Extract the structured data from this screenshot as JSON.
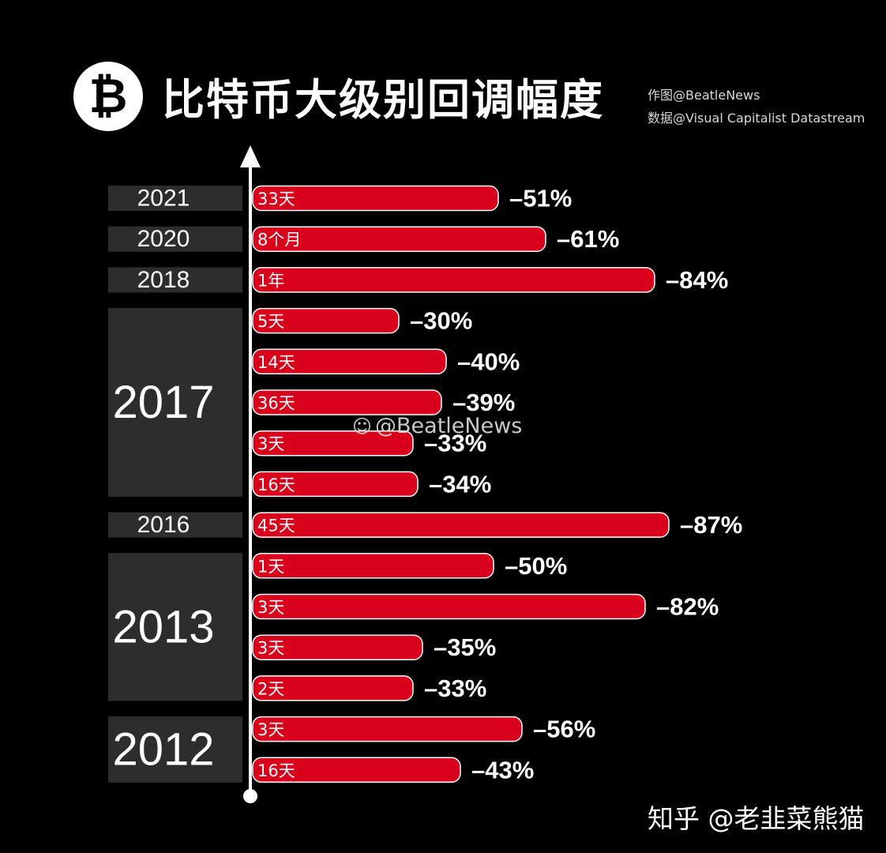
{
  "header": {
    "logo_glyph": "₿",
    "title": "比特币大级别回调幅度",
    "credit_author": "作图@BeatleNews",
    "credit_source": "数据@Visual Capitalist Datastream"
  },
  "watermark": {
    "icon": "weibo-icon",
    "text": "@BeatleNews"
  },
  "footer": {
    "credit": "知乎 @老韭菜熊猫"
  },
  "colors": {
    "bar": "#d9001b",
    "year_band": "#2d2d2d",
    "axis": "#ffffff",
    "background": "#000000"
  },
  "chart_data": {
    "type": "bar",
    "orientation": "horizontal",
    "title": "比特币大级别回调幅度",
    "groups": [
      {
        "year": "2021",
        "bars": [
          {
            "duration": "33天",
            "value": -51,
            "label": "–51%"
          }
        ]
      },
      {
        "year": "2020",
        "bars": [
          {
            "duration": "8个月",
            "value": -61,
            "label": "–61%"
          }
        ]
      },
      {
        "year": "2018",
        "bars": [
          {
            "duration": "1年",
            "value": -84,
            "label": "–84%"
          }
        ]
      },
      {
        "year": "2017",
        "bars": [
          {
            "duration": "5天",
            "value": -30,
            "label": "–30%"
          },
          {
            "duration": "14天",
            "value": -40,
            "label": "–40%"
          },
          {
            "duration": "36天",
            "value": -39,
            "label": "–39%"
          },
          {
            "duration": "3天",
            "value": -33,
            "label": "–33%"
          },
          {
            "duration": "16天",
            "value": -34,
            "label": "–34%"
          }
        ]
      },
      {
        "year": "2016",
        "bars": [
          {
            "duration": "45天",
            "value": -87,
            "label": "–87%"
          }
        ]
      },
      {
        "year": "2013",
        "bars": [
          {
            "duration": "1天",
            "value": -50,
            "label": "–50%"
          },
          {
            "duration": "3天",
            "value": -82,
            "label": "–82%"
          },
          {
            "duration": "3天",
            "value": -35,
            "label": "–35%"
          },
          {
            "duration": "2天",
            "value": -33,
            "label": "–33%"
          }
        ]
      },
      {
        "year": "2012",
        "bars": [
          {
            "duration": "3天",
            "value": -56,
            "label": "–56%"
          },
          {
            "duration": "16天",
            "value": -43,
            "label": "–43%"
          }
        ]
      }
    ],
    "legend": "none",
    "grid": false
  }
}
